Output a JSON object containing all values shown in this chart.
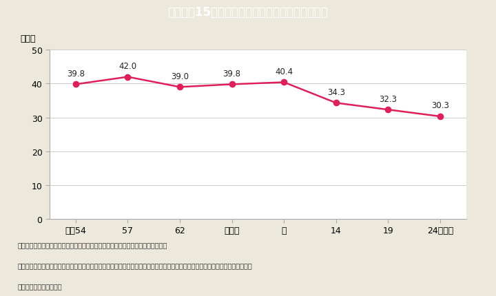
{
  "title": "Ｉ－２－15図　起業家に占める女性の割合の推移",
  "title_bg_color": "#38bfcc",
  "title_text_color": "#ffffff",
  "background_color": "#ede8dc",
  "plot_bg_color": "#ffffff",
  "x_labels": [
    "昭和54",
    "57",
    "62",
    "平成４",
    "９",
    "14",
    "19",
    "24（年）"
  ],
  "x_values": [
    0,
    1,
    2,
    3,
    4,
    5,
    6,
    7
  ],
  "y_values": [
    39.8,
    42.0,
    39.0,
    39.8,
    40.4,
    34.3,
    32.3,
    30.3
  ],
  "y_label": "（％）",
  "ylim": [
    0,
    50
  ],
  "yticks": [
    0,
    10,
    20,
    30,
    40,
    50
  ],
  "line_color": "#e01f5a",
  "marker_color": "#e01f5a",
  "marker_size": 6,
  "line_width": 1.8,
  "note1": "（備考）１．総務省「就業構造基本調査」（中小企業庁特別集計結果）より作成。",
  "note2": "　　　　２．起業家とは，過去１年間に職を変えた又は新たに職についた者のうち，現在は「自営業主（内職者を除く）」となっ",
  "note3": "　　　　　　ている者。"
}
